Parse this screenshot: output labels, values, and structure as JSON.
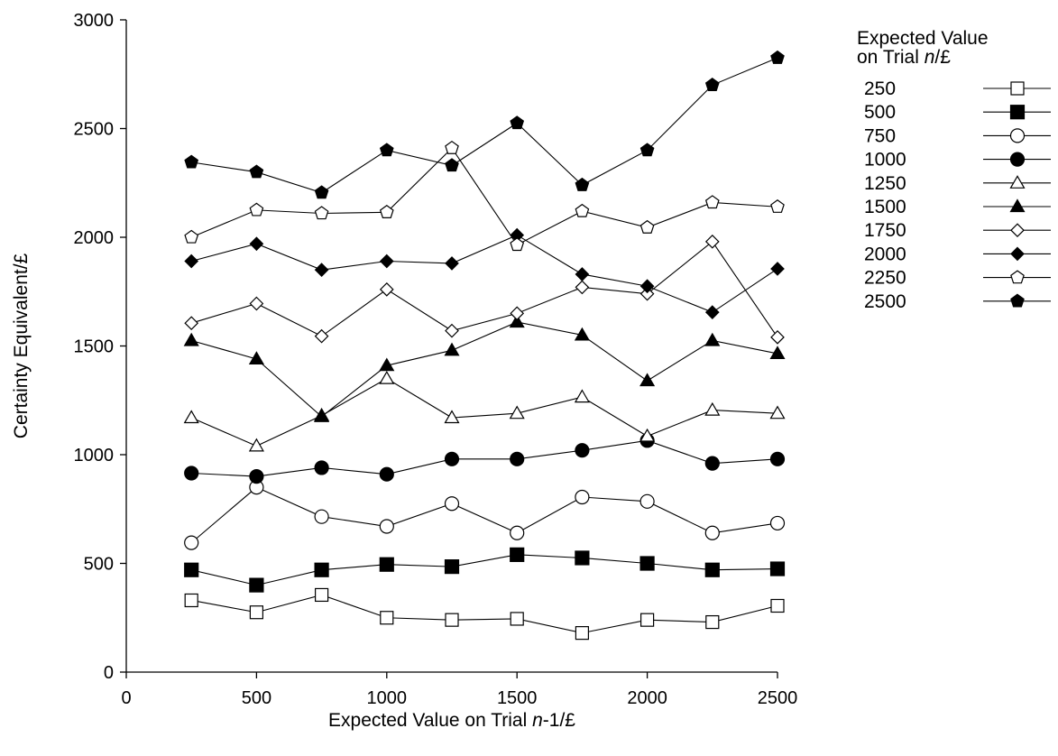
{
  "chart_data": {
    "type": "line",
    "xlabel_parts": [
      "Expected Value on Trial ",
      "n",
      "-1/£"
    ],
    "ylabel": "Certainty Equivalent/£",
    "xlim": [
      0,
      2500
    ],
    "ylim": [
      0,
      3000
    ],
    "x_ticks": [
      0,
      500,
      1000,
      1500,
      2000,
      2500
    ],
    "y_ticks": [
      0,
      500,
      1000,
      1500,
      2000,
      2500,
      3000
    ],
    "grid": false,
    "legend_position": "right",
    "legend_title_line1": "Expected Value",
    "legend_title_line2_parts": [
      "on Trial ",
      "n",
      "/£"
    ],
    "x": [
      250,
      500,
      750,
      1000,
      1250,
      1500,
      1750,
      2000,
      2250,
      2500
    ],
    "series": [
      {
        "name": "250",
        "marker": "square-open",
        "values": [
          330,
          275,
          355,
          250,
          240,
          245,
          180,
          240,
          230,
          305
        ]
      },
      {
        "name": "500",
        "marker": "square-filled",
        "values": [
          470,
          400,
          470,
          495,
          485,
          540,
          525,
          500,
          470,
          475
        ]
      },
      {
        "name": "750",
        "marker": "circle-open",
        "values": [
          595,
          850,
          715,
          670,
          775,
          640,
          805,
          785,
          640,
          685
        ]
      },
      {
        "name": "1000",
        "marker": "circle-filled",
        "values": [
          915,
          900,
          940,
          910,
          980,
          980,
          1020,
          1065,
          960,
          980
        ]
      },
      {
        "name": "1250",
        "marker": "triangle-open",
        "values": [
          1170,
          1040,
          1180,
          1350,
          1170,
          1190,
          1265,
          1085,
          1205,
          1190
        ]
      },
      {
        "name": "1500",
        "marker": "triangle-filled",
        "values": [
          1525,
          1440,
          1175,
          1410,
          1480,
          1610,
          1550,
          1340,
          1525,
          1465
        ]
      },
      {
        "name": "1750",
        "marker": "diamond-open",
        "values": [
          1605,
          1695,
          1545,
          1760,
          1570,
          1650,
          1770,
          1740,
          1980,
          1540
        ]
      },
      {
        "name": "2000",
        "marker": "diamond-filled",
        "values": [
          1890,
          1970,
          1850,
          1890,
          1880,
          2010,
          1830,
          1775,
          1655,
          1855
        ]
      },
      {
        "name": "2250",
        "marker": "pentagon-open",
        "values": [
          2000,
          2125,
          2110,
          2115,
          2410,
          1965,
          2120,
          2045,
          2160,
          2140
        ]
      },
      {
        "name": "2500",
        "marker": "pentagon-filled",
        "values": [
          2345,
          2300,
          2205,
          2400,
          2330,
          2525,
          2240,
          2400,
          2700,
          2825
        ]
      }
    ]
  }
}
